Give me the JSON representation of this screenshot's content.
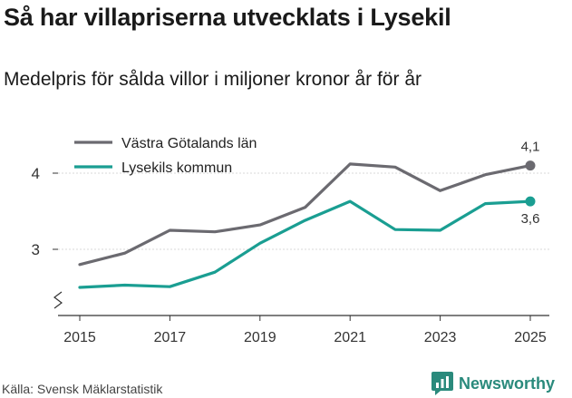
{
  "title": "Så har villapriserna utvecklats i Lysekil",
  "subtitle": "Medelpris för sålda villor i miljoner kronor år för år",
  "source": "Källa: Svensk Mäklarstatistik",
  "brand": {
    "name": "Newsworthy",
    "icon": "newsworthy-logo-icon"
  },
  "colors": {
    "series_vg": "#6b6a70",
    "series_lysekil": "#1a9e92",
    "axis": "#333333",
    "brand": "#2a8a7c"
  },
  "chart_data": {
    "type": "line",
    "x": [
      2015,
      2016,
      2017,
      2018,
      2019,
      2020,
      2021,
      2022,
      2023,
      2024,
      2025
    ],
    "xticks": [
      2015,
      2017,
      2019,
      2021,
      2023,
      2025
    ],
    "xtick_labels": [
      "2015",
      "2017",
      "2019",
      "2021",
      "2023",
      "2025"
    ],
    "yticks": [
      3,
      4
    ],
    "ytick_labels": [
      "3",
      "4"
    ],
    "ylim": [
      2.2,
      4.6
    ],
    "axis_break": true,
    "legend_position": "top-left",
    "series": [
      {
        "name": "Västra Götalands län",
        "values": [
          2.8,
          2.95,
          3.25,
          3.23,
          3.32,
          3.55,
          4.12,
          4.08,
          3.77,
          3.98,
          4.1
        ],
        "end_label": "4,1"
      },
      {
        "name": "Lysekils kommun",
        "values": [
          2.5,
          2.53,
          2.51,
          2.7,
          3.08,
          3.38,
          3.63,
          3.26,
          3.25,
          3.6,
          3.63
        ],
        "end_label": "3,6"
      }
    ]
  }
}
